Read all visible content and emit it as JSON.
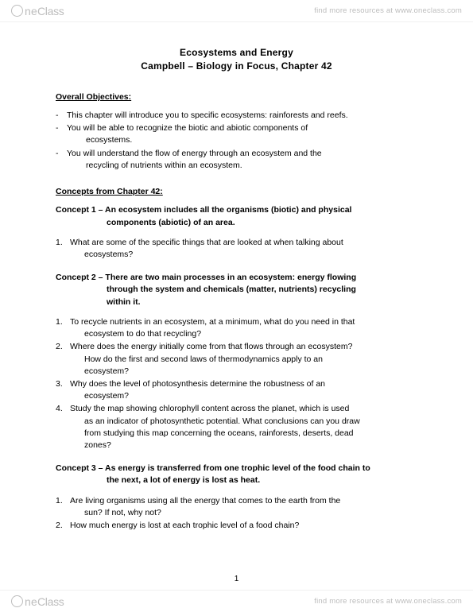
{
  "brand": {
    "one": "ne",
    "class": "Class"
  },
  "header": {
    "resources": "find more resources at www.oneclass.com"
  },
  "footer": {
    "resources": "find more resources at www.oneclass.com"
  },
  "title": {
    "line1": "Ecosystems and Energy",
    "line2": "Campbell – Biology in Focus, Chapter 42"
  },
  "objectives": {
    "heading": "Overall Objectives:",
    "items": [
      {
        "first": "This chapter will introduce you to specific ecosystems:  rainforests and reefs."
      },
      {
        "first": "You will be able to recognize the biotic and abiotic components of",
        "cont": "ecosystems."
      },
      {
        "first": "You will understand the flow of energy through an ecosystem and the",
        "cont": "recycling of nutrients within an ecosystem."
      }
    ]
  },
  "concepts_heading": "Concepts from Chapter 42:",
  "concept1": {
    "t1": "Concept 1 – An ecosystem includes all the organisms (biotic) and physical",
    "t2": "components (abiotic) of an area.",
    "questions": [
      {
        "n": "1.",
        "first": "What are some of the specific things that are looked at when talking about",
        "cont": "ecosystems?"
      }
    ]
  },
  "concept2": {
    "t1": "Concept 2 – There are two main processes in an ecosystem: energy flowing",
    "t2": "through the system and chemicals (matter, nutrients) recycling",
    "t3": "within it.",
    "questions": [
      {
        "n": "1.",
        "first": "To recycle nutrients in an ecosystem, at a minimum, what do you need in that",
        "cont": "ecosystem to do that recycling?"
      },
      {
        "n": "2.",
        "first": "Where does the energy initially come from that flows through an ecosystem?",
        "cont": "How do the first and second laws of thermodynamics apply to an",
        "cont2": "ecosystem?"
      },
      {
        "n": "3.",
        "first": "Why does the level of photosynthesis determine the robustness of an",
        "cont": "ecosystem?"
      },
      {
        "n": "4.",
        "first": "Study the map showing chlorophyll content across the planet, which is used",
        "cont": "as an indicator of photosynthetic potential.  What conclusions can you draw",
        "cont2": "from studying this map concerning the oceans, rainforests, deserts, dead",
        "cont3": "zones?"
      }
    ]
  },
  "concept3": {
    "t1": "Concept 3 – As energy is transferred from one trophic level of the food chain to",
    "t2": "the next, a lot of energy is lost as heat.",
    "questions": [
      {
        "n": "1.",
        "first": "Are living organisms using all the energy that comes to the earth from the",
        "cont": "sun?  If not, why not?"
      },
      {
        "n": "2.",
        "first": "How much energy is lost at each trophic level of a food chain?"
      }
    ]
  },
  "page_number": "1"
}
